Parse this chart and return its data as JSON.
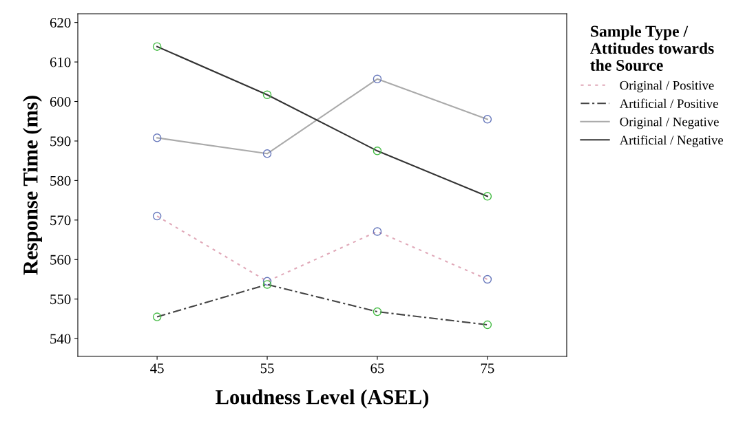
{
  "chart_data": {
    "type": "line",
    "xlabel": "Loudness Level (ASEL)",
    "ylabel": "Response Time (ms)",
    "legend_title": "Sample Type /\nAttitudes towards\nthe Source",
    "x": [
      45,
      55,
      65,
      75
    ],
    "xlim": [
      37.8,
      82.2
    ],
    "xticks": [
      45,
      55,
      65,
      75
    ],
    "ylim": [
      535.5,
      622.2
    ],
    "yticks": [
      540,
      550,
      560,
      570,
      580,
      590,
      600,
      610,
      620
    ],
    "grid": false,
    "legend": "right",
    "marker": "circle",
    "series": [
      {
        "name": "Original / Positive",
        "color": "#e0a8b8",
        "line_style": "dotted",
        "colors": [
          "#6677bb",
          "#6677bb",
          "#6677bb",
          "#6677bb"
        ],
        "values": [
          571,
          554.5,
          567.1,
          555
        ]
      },
      {
        "name": "Artificial / Positive",
        "color": "#444444",
        "line_style": "dashed",
        "colors": [
          "#44bb44",
          "#44bb44",
          "#44bb44",
          "#44bb44"
        ],
        "values": [
          545.5,
          553.7,
          546.8,
          543.5
        ]
      },
      {
        "name": "Original / Negative",
        "color": "#aaaaaa",
        "line_style": "solid",
        "colors": [
          "#6677bb",
          "#6677bb",
          "#6677bb",
          "#6677bb"
        ],
        "values": [
          590.8,
          586.8,
          605.7,
          595.5
        ]
      },
      {
        "name": "Artificial / Negative",
        "color": "#333333",
        "line_style": "solid",
        "colors": [
          "#44bb44",
          "#44bb44",
          "#44bb44",
          "#44bb44"
        ],
        "values": [
          613.9,
          601.7,
          587.5,
          576
        ]
      }
    ]
  }
}
